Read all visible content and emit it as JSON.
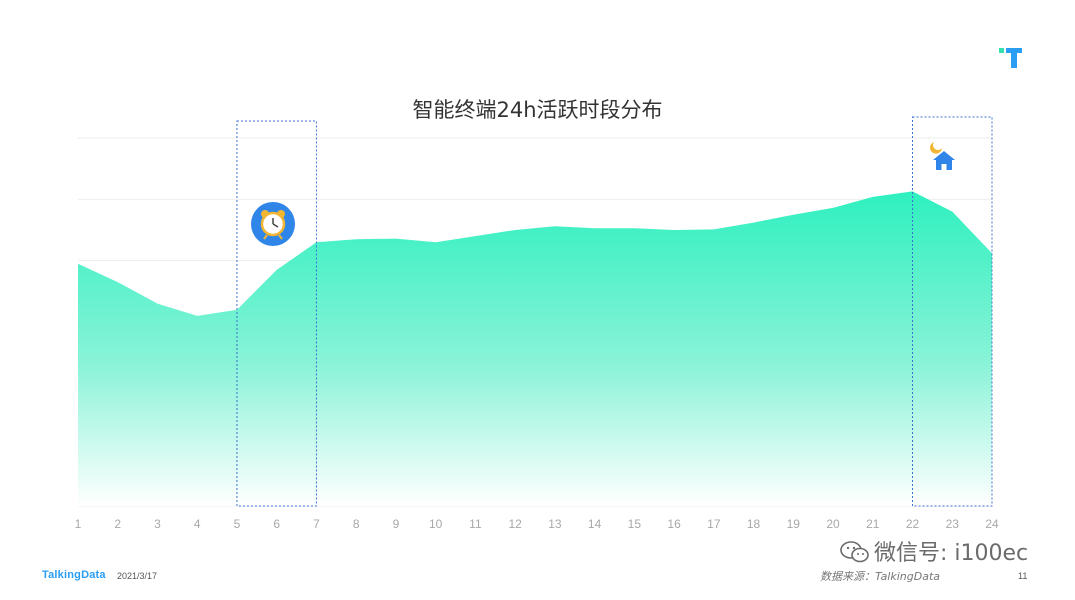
{
  "title": "智能终端24h活跃时段分布",
  "footer": {
    "brand": "TalkingData",
    "date": "2021/3/17",
    "source": "数据来源：TalkingData",
    "page": "11",
    "watermark": "微信号: i100ec"
  },
  "icons": [
    "alarm-clock-icon",
    "house-moon-icon",
    "t-logo-icon",
    "wechat-icon"
  ],
  "colors": {
    "area_top": "#33f0c0",
    "area_bottom": "#ffffff",
    "highlight_border": "#3a6fd6",
    "brand": "#2a9df4"
  },
  "chart_data": {
    "type": "area",
    "title": "智能终端24h活跃时段分布",
    "x": [
      1,
      2,
      3,
      4,
      5,
      6,
      7,
      8,
      9,
      10,
      11,
      12,
      13,
      14,
      15,
      16,
      17,
      18,
      19,
      20,
      21,
      22,
      23,
      24
    ],
    "values": [
      39.5,
      36.5,
      33,
      31,
      32,
      38.5,
      43,
      43.5,
      43.6,
      43,
      44,
      45,
      45.6,
      45.3,
      45.3,
      45,
      45.1,
      46.2,
      47.5,
      48.6,
      50.4,
      51.3,
      48,
      41.2
    ],
    "ylim": [
      0,
      60
    ],
    "grid": true,
    "highlights": [
      {
        "from": 5,
        "to": 7,
        "icon": "alarm-clock-icon"
      },
      {
        "from": 22,
        "to": 24,
        "icon": "house-moon-icon"
      }
    ]
  }
}
